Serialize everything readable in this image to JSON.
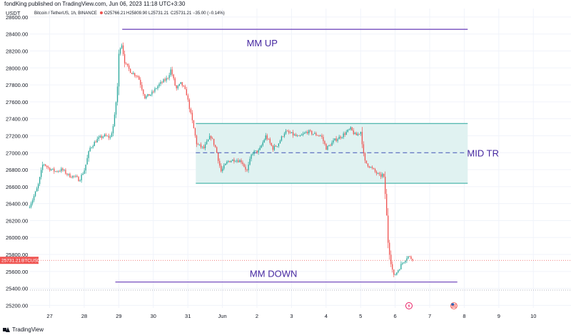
{
  "header": {
    "published_by": "fondKing published on TradingView.com, Jun 06, 2023 11:18 UTC+3:30"
  },
  "footer": {
    "logo_text": "TradingView"
  },
  "chart_data": {
    "type": "candlestick",
    "currency": "USDT",
    "symbol_line": "Bitcoin / TetherUS, 1h, BINANCE",
    "ohlc": {
      "open": "O25766.21",
      "high": "H25809.90",
      "low": "L25731.21",
      "close": "C25731.21",
      "change": "−35.00 (−0.14%)"
    },
    "last_price": {
      "label": "25731.21",
      "ticker": "BTCUSDT",
      "value": 25731.21
    },
    "yticks": [
      25200,
      25400,
      25600,
      25800,
      26000,
      26200,
      26400,
      26600,
      26800,
      27000,
      27200,
      27400,
      27600,
      27800,
      28000,
      28200,
      28400,
      28600
    ],
    "ytick_labels": [
      "25200.00",
      "25400.00",
      "25600.00",
      "25800.00",
      "26000.00",
      "26200.00",
      "26400.00",
      "26600.00",
      "26800.00",
      "27000.00",
      "27200.00",
      "27400.00",
      "27600.00",
      "27800.00",
      "28000.00",
      "28200.00",
      "28400.00",
      "28600.00"
    ],
    "ylim": [
      25170,
      28700
    ],
    "xticks": [
      {
        "label": "27",
        "day": 1
      },
      {
        "label": "28",
        "day": 2
      },
      {
        "label": "29",
        "day": 3
      },
      {
        "label": "30",
        "day": 4
      },
      {
        "label": "31",
        "day": 5
      },
      {
        "label": "Jun",
        "day": 6
      },
      {
        "label": "2",
        "day": 7
      },
      {
        "label": "3",
        "day": 8
      },
      {
        "label": "4",
        "day": 9
      },
      {
        "label": "5",
        "day": 10
      },
      {
        "label": "6",
        "day": 11
      },
      {
        "label": "7",
        "day": 12
      },
      {
        "label": "8",
        "day": 13
      },
      {
        "label": "9",
        "day": 14
      },
      {
        "label": "10",
        "day": 15
      }
    ],
    "xlim": [
      0.43,
      16.09
    ],
    "colors": {
      "up": "#26a69a",
      "down": "#ef5350",
      "annotation": "#673ab7",
      "range_fill": "#e0f2f1",
      "range_border": "#26a69a",
      "price_tag": "#ef5350",
      "grid": "#f0f3fa"
    },
    "anchors": [
      [
        0.42,
        26350
      ],
      [
        0.55,
        26450
      ],
      [
        0.7,
        26600
      ],
      [
        0.85,
        26880
      ],
      [
        1.0,
        26820
      ],
      [
        1.2,
        26780
      ],
      [
        1.4,
        26800
      ],
      [
        1.6,
        26730
      ],
      [
        1.75,
        26720
      ],
      [
        1.9,
        26680
      ],
      [
        2.05,
        26800
      ],
      [
        2.2,
        27050
      ],
      [
        2.4,
        27150
      ],
      [
        2.6,
        27200
      ],
      [
        2.8,
        27180
      ],
      [
        2.9,
        27350
      ],
      [
        3.0,
        27750
      ],
      [
        3.05,
        28200
      ],
      [
        3.12,
        28300
      ],
      [
        3.22,
        28050
      ],
      [
        3.4,
        27950
      ],
      [
        3.6,
        27900
      ],
      [
        3.8,
        27650
      ],
      [
        4.0,
        27700
      ],
      [
        4.2,
        27800
      ],
      [
        4.45,
        27880
      ],
      [
        4.55,
        27980
      ],
      [
        4.7,
        27750
      ],
      [
        4.85,
        27820
      ],
      [
        5.0,
        27700
      ],
      [
        5.18,
        27350
      ],
      [
        5.3,
        27100
      ],
      [
        5.5,
        27050
      ],
      [
        5.7,
        27200
      ],
      [
        5.85,
        27050
      ],
      [
        6.0,
        26780
      ],
      [
        6.2,
        26900
      ],
      [
        6.4,
        26920
      ],
      [
        6.6,
        26900
      ],
      [
        6.75,
        26780
      ],
      [
        6.9,
        27000
      ],
      [
        7.1,
        27020
      ],
      [
        7.3,
        27200
      ],
      [
        7.5,
        27050
      ],
      [
        7.65,
        27100
      ],
      [
        7.85,
        27250
      ],
      [
        8.05,
        27220
      ],
      [
        8.25,
        27180
      ],
      [
        8.5,
        27250
      ],
      [
        8.7,
        27220
      ],
      [
        8.9,
        27200
      ],
      [
        9.05,
        27050
      ],
      [
        9.3,
        27150
      ],
      [
        9.5,
        27200
      ],
      [
        9.75,
        27280
      ],
      [
        9.9,
        27200
      ],
      [
        10.05,
        27250
      ],
      [
        10.15,
        26900
      ],
      [
        10.4,
        26800
      ],
      [
        10.6,
        26720
      ],
      [
        10.7,
        26750
      ],
      [
        10.78,
        26400
      ],
      [
        10.82,
        26000
      ],
      [
        10.9,
        25750
      ],
      [
        11.0,
        25540
      ],
      [
        11.1,
        25600
      ],
      [
        11.25,
        25700
      ],
      [
        11.4,
        25780
      ],
      [
        11.5,
        25760
      ],
      [
        11.52,
        25731
      ]
    ],
    "annotations": {
      "mm_up": {
        "label": "MM UP",
        "price": 28455,
        "x_from": 3.1,
        "x_to": 13.1
      },
      "mm_down": {
        "label": "MM DOWN",
        "price": 25475,
        "x_from": 2.9,
        "x_to": 12.8
      },
      "range_box": {
        "top": 27345,
        "bottom": 26640,
        "x_from": 5.23,
        "x_to": 13.1
      },
      "mid_tr": {
        "label": "MID TR",
        "price": 27000,
        "x_from": 5.23,
        "x_to": 13.0
      }
    },
    "dotted_line_price": 25380
  }
}
